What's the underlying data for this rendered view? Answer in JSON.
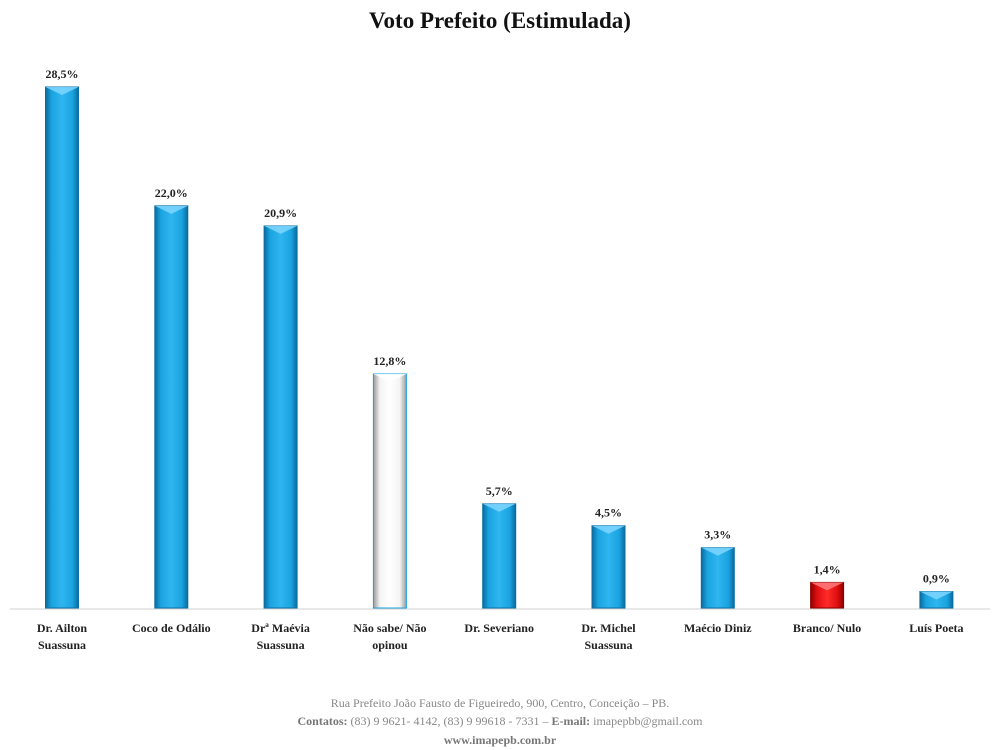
{
  "chart_data": {
    "type": "bar",
    "title": "Voto Prefeito (Estimulada)",
    "categories": [
      [
        "Dr. Ailton",
        "Suassuna"
      ],
      [
        "Coco de Odálio"
      ],
      [
        "Drª Maévia",
        "Suassuna"
      ],
      [
        "Não sabe/ Não",
        "opinou"
      ],
      [
        "Dr. Severiano"
      ],
      [
        "Dr. Michel",
        "Suassuna"
      ],
      [
        "Maécio Diniz"
      ],
      [
        "Branco/ Nulo"
      ],
      [
        "Luís Poeta"
      ]
    ],
    "values": [
      28.5,
      22.0,
      20.9,
      12.8,
      5.7,
      4.5,
      3.3,
      1.4,
      0.9
    ],
    "data_labels": [
      "28,5%",
      "22,0%",
      "20,9%",
      "12,8%",
      "5,7%",
      "4,5%",
      "3,3%",
      "1,4%",
      "0,9%"
    ],
    "bar_colors": [
      "#1aa3e0",
      "#1aa3e0",
      "#1aa3e0",
      "#ffffff",
      "#1aa3e0",
      "#1aa3e0",
      "#1aa3e0",
      "#e01010",
      "#1aa3e0"
    ],
    "grid": false,
    "legend": "none",
    "ylim": [
      0,
      28.5
    ]
  },
  "colors": {
    "blue": "#1aa3e0",
    "blue_dark": "#0b6fa3",
    "red": "#e01010",
    "white_bar_border": "#1aa3e0"
  },
  "footer": {
    "address": "Rua Prefeito João Fausto de Figueiredo, 900, Centro, Conceição – PB.",
    "contacts_label": "Contatos:",
    "contacts_phones": "(83) 9 9621- 4142, (83) 9 99618 - 7331 –",
    "email_label": "E-mail:",
    "email": "imapepbb@gmail.com",
    "website": "www.imapepb.com.br"
  }
}
